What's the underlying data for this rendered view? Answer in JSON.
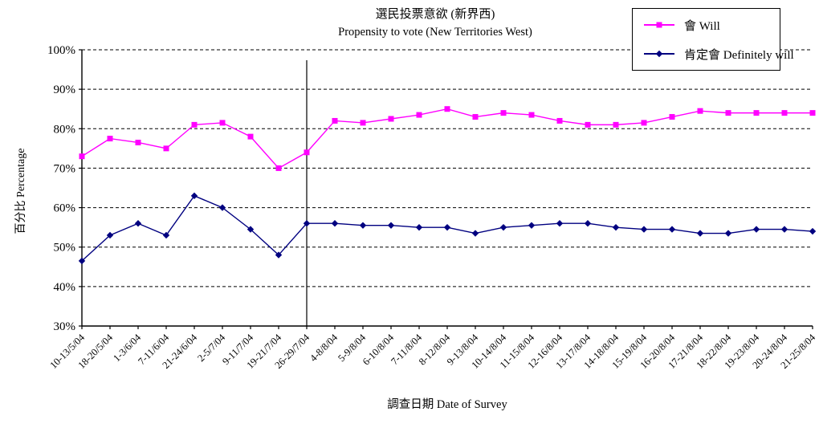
{
  "title": {
    "zh": "選民投票意欲 (新界西)",
    "en": "Propensity to vote (New Territories West)"
  },
  "legend": [
    {
      "label": "會 Will",
      "color": "#FF00FF",
      "marker": "square"
    },
    {
      "label": "肯定會 Definitely will",
      "color": "#000080",
      "marker": "diamond"
    }
  ],
  "chart_data": {
    "type": "line",
    "title": "選民投票意欲 (新界西) / Propensity to vote (New Territories West)",
    "xlabel": "調查日期 Date of Survey",
    "ylabel": "百分比 Percentage",
    "ylim": [
      30,
      100
    ],
    "y_tick_step": 10,
    "y_tick_suffix": "%",
    "grid": "horizontal-dashed",
    "legend_position": "top-right",
    "separator_vline_at_index": 8,
    "categories": [
      "10-13/5/04",
      "18-20/5/04",
      "1-3/6/04",
      "7-11/6/04",
      "21-24/6/04",
      "2-5/7/04",
      "9-11/7/04",
      "19-21/7/04",
      "26-29/7/04",
      "4-8/8/04",
      "5-9/8/04",
      "6-10/8/04",
      "7-11/8/04",
      "8-12/8/04",
      "9-13/8/04",
      "10-14/8/04",
      "11-15/8/04",
      "12-16/8/04",
      "13-17/8/04",
      "14-18/8/04",
      "15-19/8/04",
      "16-20/8/04",
      "17-21/8/04",
      "18-22/8/04",
      "19-23/8/04",
      "20-24/8/04",
      "21-25/8/04"
    ],
    "series": [
      {
        "name": "會 Will",
        "color": "#FF00FF",
        "marker": "square",
        "values": [
          73,
          77.5,
          76.5,
          75,
          81,
          81.5,
          78,
          70,
          74,
          82,
          81.5,
          82.5,
          83.5,
          85,
          83,
          84,
          83.5,
          82,
          81,
          81,
          81.5,
          83,
          84.5,
          84,
          84,
          84,
          84
        ]
      },
      {
        "name": "肯定會 Definitely will",
        "color": "#000080",
        "marker": "diamond",
        "values": [
          46.5,
          53,
          56,
          53,
          63,
          60,
          54.5,
          48,
          56,
          56,
          55.5,
          55.5,
          55,
          55,
          53.5,
          55,
          55.5,
          56,
          56,
          55,
          54.5,
          54.5,
          53.5,
          53.5,
          54.5,
          54.5,
          54
        ]
      }
    ]
  }
}
